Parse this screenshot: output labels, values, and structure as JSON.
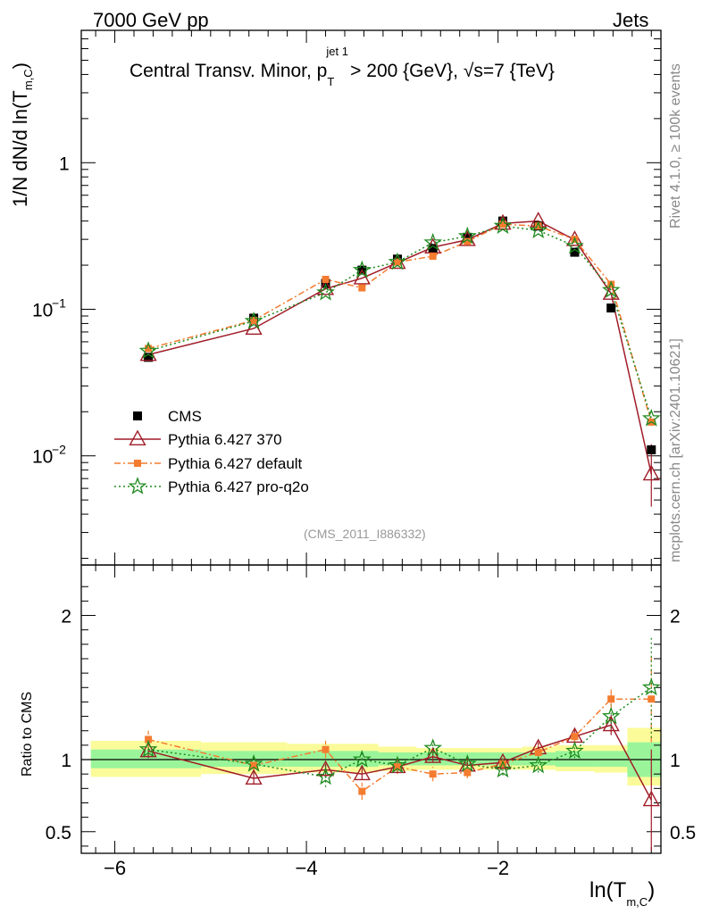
{
  "header": {
    "left": "7000 GeV pp",
    "right": "Jets"
  },
  "side_labels": {
    "rivet": "Rivet 4.1.0, ≥ 100k events",
    "mcplots": "mcplots.cern.ch [arXiv:2401.10621]"
  },
  "chart_data": {
    "type": "line",
    "title": "Central Transv. Minor, p_T^{jet 1} > 200 {GeV}, √s=7 {TeV}",
    "title_parts": {
      "main": "Central Transv. Minor, p",
      "sup": "jet 1",
      "sub": "T",
      "rest": " > 200 {GeV}, √s=7 {TeV}"
    },
    "watermark": "(CMS_2011_I886332)",
    "ylabel_main": "1/N    dN/d ln(T",
    "ylabel_sub": "m,C",
    "ylabel_close": ")",
    "xlabel_main": "ln(T",
    "xlabel_sub": "m,C",
    "xlabel_close": ")",
    "ratio_ylabel": "Ratio to CMS",
    "xlim": [
      -6.35,
      -0.3
    ],
    "ylim_main": [
      0.0018,
      8
    ],
    "yscale_main": "log",
    "ylim_ratio": [
      0.35,
      2.35
    ],
    "x_ticks": [
      -6,
      -4,
      -2
    ],
    "x_tick_labels": [
      "−6",
      "−4",
      "−2"
    ],
    "y_ticks_main": [
      0.01,
      0.1,
      1
    ],
    "y_tick_labels_main": [
      {
        "base": "10",
        "exp": "−2"
      },
      {
        "base": "10",
        "exp": "−1"
      },
      {
        "base": "1",
        "exp": ""
      }
    ],
    "y_ticks_ratio": [
      0.5,
      1,
      2
    ],
    "y_tick_labels_ratio": [
      "0.5",
      "1",
      "2"
    ],
    "x": [
      -5.65,
      -4.55,
      -3.8,
      -3.42,
      -3.05,
      -2.68,
      -2.32,
      -1.95,
      -1.58,
      -1.2,
      -0.82,
      -0.4
    ],
    "series": [
      {
        "name": "CMS",
        "color": "#000000",
        "marker": "square",
        "values": [
          0.047,
          0.087,
          0.15,
          0.185,
          0.22,
          0.26,
          0.31,
          0.4,
          0.37,
          0.245,
          0.102,
          0.011
        ],
        "ratio": [
          1,
          1,
          1,
          1,
          1,
          1,
          1,
          1,
          1,
          1,
          1,
          1
        ]
      },
      {
        "name": "Pythia 6.427 370",
        "color": "#a01c28",
        "marker": "triangle",
        "values": [
          0.049,
          0.074,
          0.138,
          0.163,
          0.208,
          0.265,
          0.298,
          0.385,
          0.4,
          0.298,
          0.128,
          0.0075
        ],
        "ratio": [
          1.06,
          0.87,
          0.93,
          0.9,
          0.95,
          1.02,
          0.96,
          0.98,
          1.08,
          1.16,
          1.24,
          0.72
        ],
        "ratio_err": [
          0.05,
          0.04,
          0.04,
          0.04,
          0.04,
          0.04,
          0.04,
          0.03,
          0.04,
          0.05,
          0.07,
          0.35
        ]
      },
      {
        "name": "Pythia 6.427 default",
        "color": "#f47c30",
        "marker": "square",
        "values": [
          0.054,
          0.084,
          0.16,
          0.14,
          0.21,
          0.23,
          0.29,
          0.38,
          0.37,
          0.3,
          0.148,
          0.017
        ],
        "ratio": [
          1.14,
          0.96,
          1.07,
          0.78,
          0.95,
          0.9,
          0.91,
          0.97,
          1.05,
          1.16,
          1.42,
          1.42
        ],
        "ratio_err": [
          0.06,
          0.05,
          0.06,
          0.06,
          0.05,
          0.05,
          0.04,
          0.04,
          0.05,
          0.05,
          0.07,
          0.3
        ]
      },
      {
        "name": "Pythia 6.427 pro-q2o",
        "color": "#1e8a1e",
        "marker": "star",
        "values": [
          0.052,
          0.083,
          0.13,
          0.185,
          0.21,
          0.285,
          0.315,
          0.37,
          0.345,
          0.27,
          0.135,
          0.018
        ],
        "ratio": [
          1.07,
          0.97,
          0.88,
          1.0,
          0.96,
          1.08,
          0.97,
          0.93,
          0.96,
          1.06,
          1.3,
          1.5
        ],
        "ratio_err": [
          0.06,
          0.06,
          0.07,
          0.06,
          0.05,
          0.05,
          0.05,
          0.04,
          0.05,
          0.05,
          0.08,
          0.35
        ]
      }
    ],
    "band_edges": [
      -6.25,
      -5.1,
      -4.2,
      -3.6,
      -3.25,
      -2.85,
      -2.5,
      -2.1,
      -1.75,
      -1.4,
      -1.0,
      -0.65,
      -0.3
    ],
    "band_yellow": [
      [
        0.88,
        1.13
      ],
      [
        0.9,
        1.12
      ],
      [
        0.91,
        1.11
      ],
      [
        0.91,
        1.11
      ],
      [
        0.92,
        1.09
      ],
      [
        0.93,
        1.08
      ],
      [
        0.93,
        1.08
      ],
      [
        0.93,
        1.08
      ],
      [
        0.93,
        1.09
      ],
      [
        0.92,
        1.1
      ],
      [
        0.91,
        1.1
      ],
      [
        0.82,
        1.22
      ]
    ],
    "band_green": [
      [
        0.94,
        1.07
      ],
      [
        0.95,
        1.06
      ],
      [
        0.95,
        1.06
      ],
      [
        0.95,
        1.06
      ],
      [
        0.96,
        1.05
      ],
      [
        0.96,
        1.05
      ],
      [
        0.96,
        1.05
      ],
      [
        0.96,
        1.05
      ],
      [
        0.96,
        1.05
      ],
      [
        0.95,
        1.06
      ],
      [
        0.95,
        1.06
      ],
      [
        0.88,
        1.12
      ]
    ]
  }
}
